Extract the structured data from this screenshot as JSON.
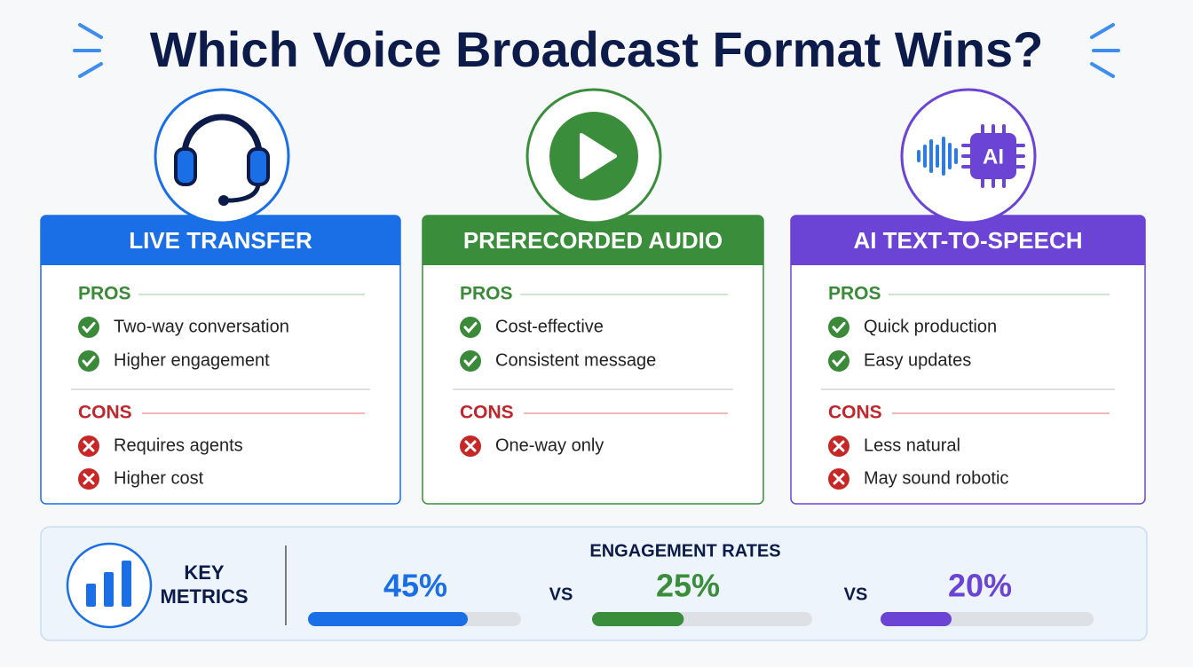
{
  "title": "Which Voice Broadcast Format Wins?",
  "cards": [
    {
      "title": "LIVE TRANSFER",
      "color": "#1a6fe6",
      "pros_label": "PROS",
      "pros": [
        "Two-way conversation",
        "Higher engagement"
      ],
      "cons_label": "CONS",
      "cons": [
        "Requires agents",
        "Higher cost"
      ]
    },
    {
      "title": "PRERECORDED AUDIO",
      "color": "#3a8d3a",
      "pros_label": "PROS",
      "pros": [
        "Cost-effective",
        "Consistent message"
      ],
      "cons_label": "CONS",
      "cons": [
        "One-way only"
      ]
    },
    {
      "title": "AI TEXT-TO-SPEECH",
      "color": "#6b44d6",
      "icon_label": "AI",
      "pros_label": "PROS",
      "pros": [
        "Quick production",
        "Easy updates"
      ],
      "cons_label": "CONS",
      "cons": [
        "Less natural",
        "May sound robotic"
      ]
    }
  ],
  "metrics": {
    "heading": "KEY METRICS",
    "title": "ENGAGEMENT RATES",
    "separator": "VS",
    "items": [
      {
        "value": 45,
        "label": "45%",
        "color": "#1a6fe6"
      },
      {
        "value": 25,
        "label": "25%",
        "color": "#3a8d3a"
      },
      {
        "value": 20,
        "label": "20%",
        "color": "#6b44d6"
      }
    ]
  }
}
